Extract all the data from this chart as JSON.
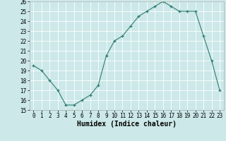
{
  "x": [
    0,
    1,
    2,
    3,
    4,
    5,
    6,
    7,
    8,
    9,
    10,
    11,
    12,
    13,
    14,
    15,
    16,
    17,
    18,
    19,
    20,
    21,
    22,
    23
  ],
  "y": [
    19.5,
    19.0,
    18.0,
    17.0,
    15.5,
    15.5,
    16.0,
    16.5,
    17.5,
    20.5,
    22.0,
    22.5,
    23.5,
    24.5,
    25.0,
    25.5,
    26.0,
    25.5,
    25.0,
    25.0,
    25.0,
    22.5,
    20.0,
    17.0
  ],
  "ylim": [
    15,
    26
  ],
  "xlim": [
    -0.5,
    23.5
  ],
  "yticks": [
    15,
    16,
    17,
    18,
    19,
    20,
    21,
    22,
    23,
    24,
    25,
    26
  ],
  "xticks": [
    0,
    1,
    2,
    3,
    4,
    5,
    6,
    7,
    8,
    9,
    10,
    11,
    12,
    13,
    14,
    15,
    16,
    17,
    18,
    19,
    20,
    21,
    22,
    23
  ],
  "xlabel": "Humidex (Indice chaleur)",
  "line_color": "#2e7d6e",
  "marker": "+",
  "bg_color": "#cce8e8",
  "grid_color": "#ffffff",
  "tick_fontsize": 5.5,
  "xlabel_fontsize": 7
}
